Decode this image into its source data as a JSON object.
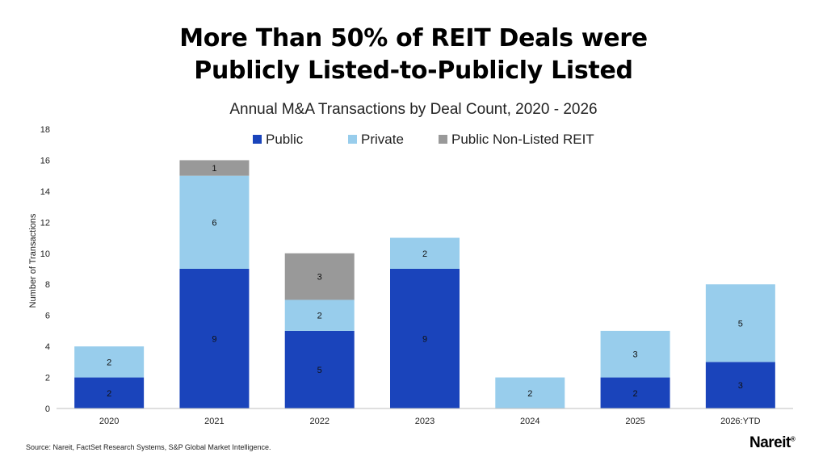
{
  "title_lines": [
    "More Than 50% of REIT Deals were",
    "Publicly Listed-to-Publicly Listed"
  ],
  "source": "Source: Nareit, FactSet Research Systems, S&P Global Market Intelligence.",
  "brand": "Nareit",
  "brand_mark": "®",
  "chart_data": {
    "type": "bar",
    "stacked": true,
    "title": "Annual M&A Transactions by Deal Count, 2020 - 2026",
    "xlabel": "",
    "ylabel": "Number of Transactions",
    "ylim": [
      0,
      18
    ],
    "yticks": [
      0,
      2,
      4,
      6,
      8,
      10,
      12,
      14,
      16,
      18
    ],
    "grid": false,
    "legend": "top-center",
    "categories": [
      "2020",
      "2021",
      "2022",
      "2023",
      "2024",
      "2025",
      "2026:YTD"
    ],
    "series": [
      {
        "name": "Public",
        "color": "#1a44bb",
        "values": [
          2,
          9,
          5,
          9,
          0,
          2,
          3
        ]
      },
      {
        "name": "Private",
        "color": "#98cdec",
        "values": [
          2,
          6,
          2,
          2,
          2,
          3,
          5
        ]
      },
      {
        "name": "Public Non-Listed REIT",
        "color": "#999999",
        "values": [
          0,
          1,
          3,
          0,
          0,
          0,
          0
        ]
      }
    ]
  }
}
